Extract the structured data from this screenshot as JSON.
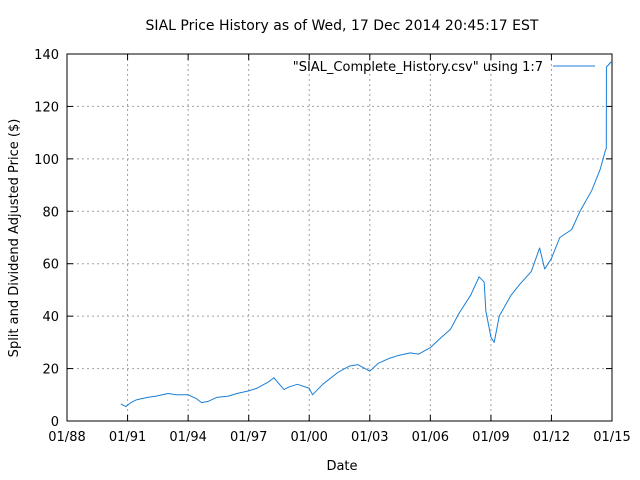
{
  "chart_data": {
    "type": "line",
    "title": "SIAL Price History as of Wed, 17 Dec 2014 20:45:17 EST",
    "xlabel": "Date",
    "ylabel": "Split and Dividend Adjusted Price ($)",
    "xlim": [
      "1988-01-01",
      "2015-01-01"
    ],
    "ylim": [
      0,
      140
    ],
    "x_ticks": [
      "01/88",
      "01/91",
      "01/94",
      "01/97",
      "01/00",
      "01/03",
      "01/06",
      "01/09",
      "01/12",
      "01/15"
    ],
    "y_ticks": [
      0,
      20,
      40,
      60,
      80,
      100,
      120,
      140
    ],
    "grid": true,
    "legend_position": "top-right",
    "line_color": "#1a7fd6",
    "series": [
      {
        "name": "\"SIAL_Complete_History.csv\" using 1:7",
        "points": [
          [
            "1990-09-01",
            6.5
          ],
          [
            "1990-12-01",
            5.5
          ],
          [
            "1991-03-01",
            7.0
          ],
          [
            "1991-06-01",
            8.0
          ],
          [
            "1991-09-01",
            8.5
          ],
          [
            "1992-01-01",
            9.0
          ],
          [
            "1992-06-01",
            9.5
          ],
          [
            "1993-01-01",
            10.5
          ],
          [
            "1993-06-01",
            10.0
          ],
          [
            "1994-01-01",
            10.0
          ],
          [
            "1994-06-01",
            8.5
          ],
          [
            "1994-09-01",
            7.0
          ],
          [
            "1995-01-01",
            7.5
          ],
          [
            "1995-06-01",
            9.0
          ],
          [
            "1996-01-01",
            9.5
          ],
          [
            "1996-06-01",
            10.5
          ],
          [
            "1997-01-01",
            11.5
          ],
          [
            "1997-06-01",
            12.5
          ],
          [
            "1998-01-01",
            15.0
          ],
          [
            "1998-04-01",
            16.5
          ],
          [
            "1998-10-01",
            12.0
          ],
          [
            "1999-01-01",
            13.0
          ],
          [
            "1999-06-01",
            14.0
          ],
          [
            "2000-01-01",
            12.5
          ],
          [
            "2000-03-01",
            10.0
          ],
          [
            "2000-09-01",
            14.0
          ],
          [
            "2001-01-01",
            16.0
          ],
          [
            "2001-06-01",
            18.5
          ],
          [
            "2002-01-01",
            21.0
          ],
          [
            "2002-06-01",
            21.5
          ],
          [
            "2003-01-01",
            19.0
          ],
          [
            "2003-06-01",
            22.0
          ],
          [
            "2004-01-01",
            24.0
          ],
          [
            "2004-06-01",
            25.0
          ],
          [
            "2005-01-01",
            26.0
          ],
          [
            "2005-06-01",
            25.5
          ],
          [
            "2006-01-01",
            28.0
          ],
          [
            "2006-06-01",
            31.0
          ],
          [
            "2007-01-01",
            35.0
          ],
          [
            "2007-06-01",
            41.0
          ],
          [
            "2008-01-01",
            48.0
          ],
          [
            "2008-06-01",
            55.0
          ],
          [
            "2008-09-01",
            53.0
          ],
          [
            "2008-10-01",
            42.0
          ],
          [
            "2009-01-01",
            32.0
          ],
          [
            "2009-03-01",
            30.0
          ],
          [
            "2009-06-01",
            40.0
          ],
          [
            "2010-01-01",
            48.0
          ],
          [
            "2010-06-01",
            52.0
          ],
          [
            "2011-01-01",
            57.0
          ],
          [
            "2011-06-01",
            66.0
          ],
          [
            "2011-09-01",
            58.0
          ],
          [
            "2012-01-01",
            62.0
          ],
          [
            "2012-06-01",
            70.0
          ],
          [
            "2013-01-01",
            73.0
          ],
          [
            "2013-06-01",
            80.0
          ],
          [
            "2014-01-01",
            88.0
          ],
          [
            "2014-06-01",
            96.0
          ],
          [
            "2014-09-01",
            103.0
          ],
          [
            "2014-09-20",
            104.0
          ],
          [
            "2014-09-22",
            135.0
          ],
          [
            "2014-12-17",
            137.0
          ]
        ]
      }
    ]
  }
}
